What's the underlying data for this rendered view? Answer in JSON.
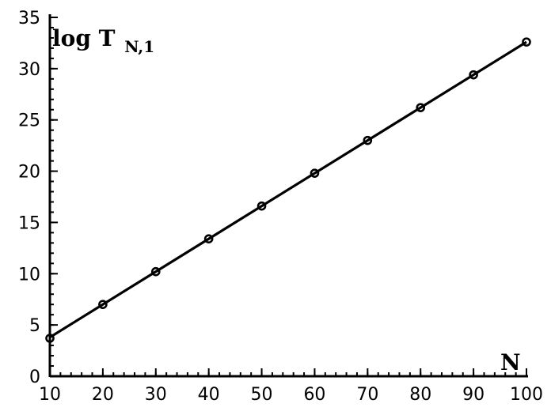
{
  "chart_data": {
    "type": "line",
    "title": "",
    "xlabel": "N",
    "ylabel_main": "log T",
    "ylabel_sub": "N,1",
    "xlim": [
      10,
      100
    ],
    "ylim": [
      0,
      35
    ],
    "xticks": [
      10,
      20,
      30,
      40,
      50,
      60,
      70,
      80,
      90,
      100
    ],
    "yticks": [
      0,
      5,
      10,
      15,
      20,
      25,
      30,
      35
    ],
    "x_minor_step": 2,
    "y_minor_step": 1,
    "grid": false,
    "legend": "none",
    "colors": {
      "line": "#000000",
      "marker_stroke": "#000000",
      "marker_fill": "#ffffff"
    },
    "series": [
      {
        "style": "line",
        "x": [
          10,
          100
        ],
        "y": [
          3.8,
          32.6
        ]
      },
      {
        "style": "markers",
        "marker": "open-circle",
        "x": [
          10,
          20,
          30,
          40,
          50,
          60,
          70,
          80,
          90,
          100
        ],
        "y": [
          3.7,
          7.0,
          10.2,
          13.4,
          16.6,
          19.8,
          23.0,
          26.2,
          29.4,
          32.6
        ]
      }
    ]
  }
}
